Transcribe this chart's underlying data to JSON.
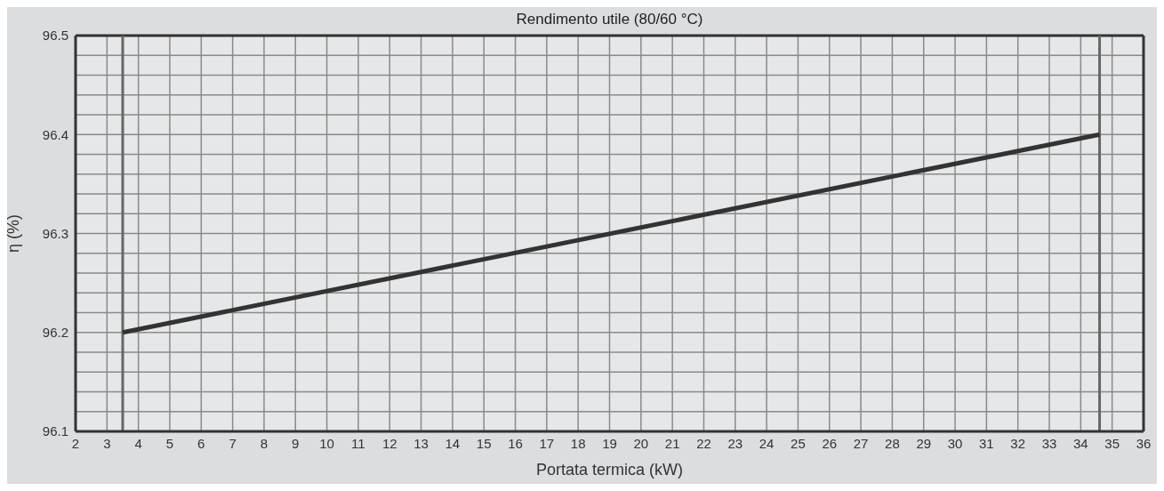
{
  "chart_data": {
    "type": "line",
    "title": "Rendimento utile (80/60 °C)",
    "xlabel": "Portata termica (kW)",
    "ylabel": "η (%)",
    "x": [
      3.5,
      34.6
    ],
    "series": [
      {
        "color": "#333333",
        "values": [
          96.2,
          96.4
        ]
      }
    ],
    "xlim": [
      2,
      36
    ],
    "xticks": [
      2,
      3,
      4,
      5,
      6,
      7,
      8,
      9,
      10,
      11,
      12,
      13,
      14,
      15,
      16,
      17,
      18,
      19,
      20,
      21,
      22,
      23,
      24,
      25,
      26,
      27,
      28,
      29,
      30,
      31,
      32,
      33,
      34,
      35,
      36
    ],
    "ylim": [
      96.1,
      96.5
    ],
    "yticks": [
      96.1,
      {
        "value": 96.12,
        "label": null
      },
      {
        "value": 96.14,
        "label": null
      },
      {
        "value": 96.16,
        "label": null
      },
      {
        "value": 96.18,
        "label": null
      },
      96.2,
      {
        "value": 96.22,
        "label": null
      },
      {
        "value": 96.24,
        "label": null
      },
      {
        "value": 96.26,
        "label": null
      },
      {
        "value": 96.28,
        "label": null
      },
      96.3,
      {
        "value": 96.32,
        "label": null
      },
      {
        "value": 96.34,
        "label": null
      },
      {
        "value": 96.36,
        "label": null
      },
      {
        "value": 96.38,
        "label": null
      },
      96.4,
      {
        "value": 96.42,
        "label": null
      },
      {
        "value": 96.44,
        "label": null
      },
      {
        "value": 96.46,
        "label": null
      },
      {
        "value": 96.48,
        "label": null
      },
      96.5
    ],
    "ref_lines": [
      {
        "axis": "x",
        "value": 3.5,
        "color": "#666666"
      },
      {
        "axis": "x",
        "value": 34.6,
        "color": "#666666"
      }
    ],
    "grid": true,
    "marker": "none",
    "line_style": "solid"
  }
}
